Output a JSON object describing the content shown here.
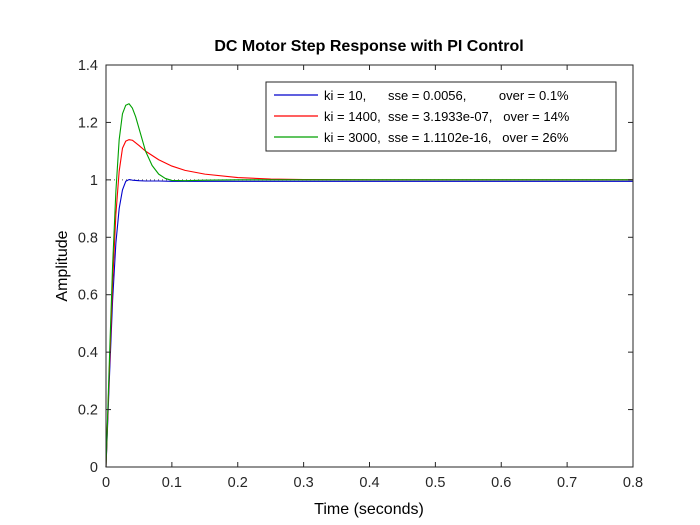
{
  "chart_data": {
    "type": "line",
    "title": "DC Motor Step Response with PI Control",
    "xlabel": "Time (seconds)",
    "ylabel": "Amplitude",
    "xlim": [
      0,
      0.8
    ],
    "ylim": [
      0,
      1.4
    ],
    "xticks": [
      0,
      0.1,
      0.2,
      0.3,
      0.4,
      0.5,
      0.6,
      0.7,
      0.8
    ],
    "xtick_labels": [
      "0",
      "0.1",
      "0.2",
      "0.3",
      "0.4",
      "0.5",
      "0.6",
      "0.7",
      "0.8"
    ],
    "yticks": [
      0,
      0.2,
      0.4,
      0.6,
      0.8,
      1,
      1.2,
      1.4
    ],
    "ytick_labels": [
      "0",
      "0.2",
      "0.4",
      "0.6",
      "0.8",
      "1",
      "1.2",
      "1.4"
    ],
    "grid": false,
    "legend_position": "top-right",
    "reference_line": {
      "y": 1,
      "style": "dotted"
    },
    "series": [
      {
        "name": "ki = 10,      sse = 0.0056,         over = 0.1%",
        "color": "#0000cc",
        "x": [
          0,
          0.005,
          0.01,
          0.015,
          0.02,
          0.025,
          0.03,
          0.035,
          0.04,
          0.05,
          0.06,
          0.08,
          0.1,
          0.2,
          0.4,
          0.6,
          0.8
        ],
        "y": [
          0,
          0.3,
          0.58,
          0.78,
          0.9,
          0.965,
          0.995,
          1.001,
          0.999,
          0.997,
          0.996,
          0.996,
          0.995,
          0.995,
          0.995,
          0.995,
          0.995
        ]
      },
      {
        "name": "ki = 1400,  sse = 3.1933e-07,   over = 14%",
        "color": "#ff0000",
        "x": [
          0,
          0.005,
          0.01,
          0.015,
          0.02,
          0.025,
          0.03,
          0.035,
          0.04,
          0.05,
          0.06,
          0.08,
          0.1,
          0.12,
          0.15,
          0.2,
          0.25,
          0.3,
          0.4,
          0.6,
          0.8
        ],
        "y": [
          0,
          0.33,
          0.64,
          0.88,
          1.03,
          1.11,
          1.135,
          1.14,
          1.138,
          1.12,
          1.1,
          1.07,
          1.048,
          1.033,
          1.02,
          1.008,
          1.003,
          1.001,
          1.0,
          1.0,
          1.0
        ]
      },
      {
        "name": "ki = 3000,  sse = 1.1102e-16,   over = 26%",
        "color": "#00a000",
        "x": [
          0,
          0.005,
          0.01,
          0.015,
          0.02,
          0.025,
          0.03,
          0.035,
          0.04,
          0.045,
          0.05,
          0.06,
          0.07,
          0.08,
          0.09,
          0.1,
          0.12,
          0.15,
          0.2,
          0.4,
          0.8
        ],
        "y": [
          0,
          0.36,
          0.7,
          0.96,
          1.14,
          1.23,
          1.26,
          1.265,
          1.25,
          1.22,
          1.18,
          1.1,
          1.05,
          1.02,
          1.005,
          0.998,
          0.997,
          0.999,
          1.0,
          1.0,
          1.0
        ]
      }
    ]
  }
}
